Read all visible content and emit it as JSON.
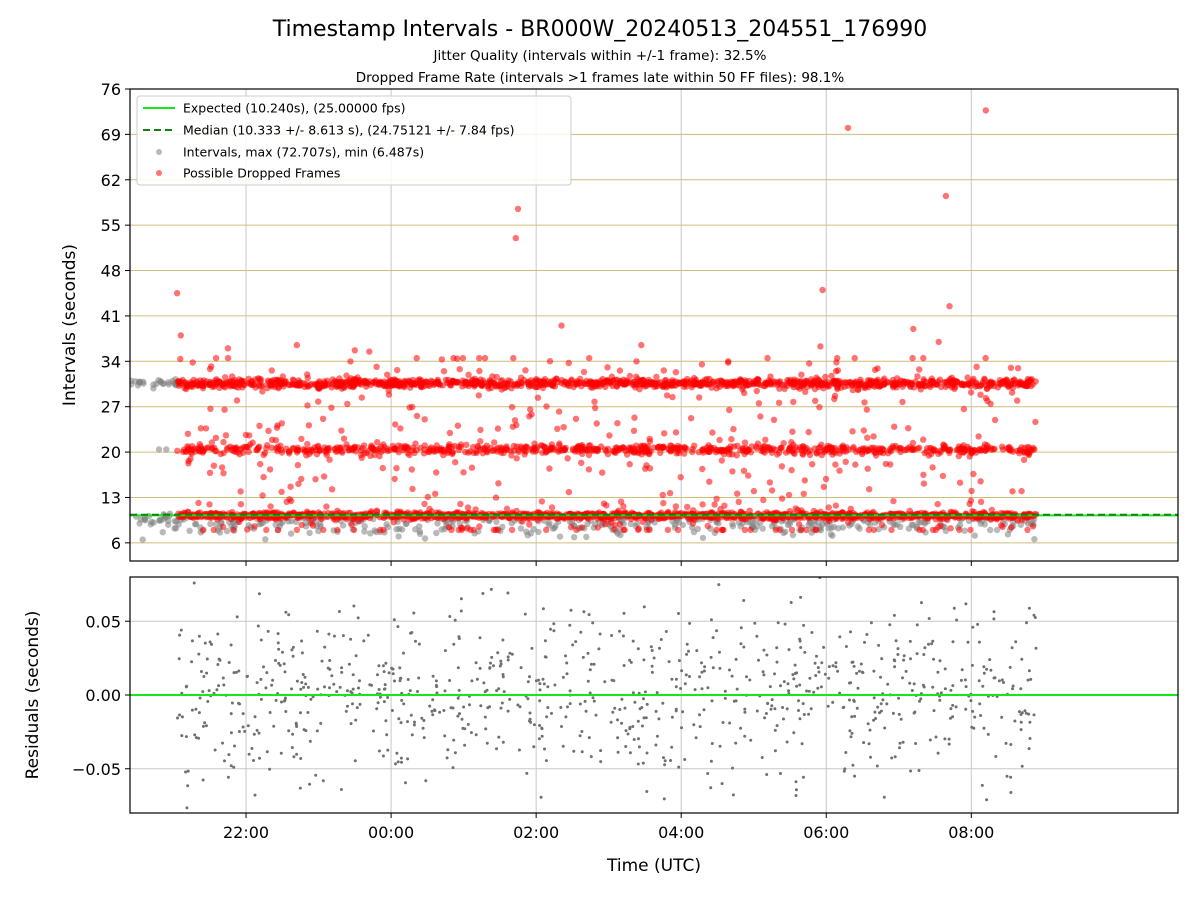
{
  "title": "Timestamp Intervals - BR000W_20240513_204551_176990",
  "subtitles": [
    "Jitter Quality (intervals within +/-1 frame): 32.5%",
    "Dropped Frame Rate (intervals >1 frames late within 50 FF files): 98.1%"
  ],
  "colors": {
    "expected": "#19e619",
    "median": "#128012",
    "intervals": "#808080",
    "dropped": "#ff0000",
    "hgrid": "#d2bc7a",
    "vgrid": "#c8c8c8"
  },
  "chart_data": [
    {
      "type": "scatter",
      "xlabel": "",
      "ylabel": "Intervals (seconds)",
      "ylim": [
        3.2,
        76
      ],
      "y_ticks": [
        "6",
        "13",
        "20",
        "27",
        "34",
        "41",
        "48",
        "55",
        "62",
        "69",
        "76"
      ],
      "x_ticks": [
        "22:00",
        "00:00",
        "02:00",
        "04:00",
        "06:00",
        "08:00"
      ],
      "xlim_hours": [
        -3.6,
        10.85
      ],
      "legend": {
        "placement": "top-left",
        "entries": [
          "Expected (10.240s), (25.00000 fps)",
          "Median (10.333 +/- 8.613 s), (24.75121 +/- 7.84 fps)",
          "Intervals, max (72.707s), min (6.487s)",
          "Possible Dropped Frames"
        ]
      },
      "expected_interval_s": 10.24,
      "median_interval_s": 10.333,
      "series": [
        {
          "name": "Possible Dropped Frames",
          "bands_s": [
            10.2,
            20.4,
            30.6
          ],
          "x_range_hours": [
            -2.95,
            8.9
          ],
          "outliers": [
            {
              "x": -2.95,
              "y": 44.5
            },
            {
              "x": -2.9,
              "y": 38.0
            },
            {
              "x": 1.75,
              "y": 57.5
            },
            {
              "x": 1.72,
              "y": 53.0
            },
            {
              "x": 2.35,
              "y": 39.5
            },
            {
              "x": 3.45,
              "y": 36.5
            },
            {
              "x": 6.3,
              "y": 70.0
            },
            {
              "x": 5.95,
              "y": 45.0
            },
            {
              "x": 5.92,
              "y": 36.3
            },
            {
              "x": 7.65,
              "y": 59.5
            },
            {
              "x": 7.7,
              "y": 42.5
            },
            {
              "x": 8.2,
              "y": 72.7
            },
            {
              "x": 7.2,
              "y": 39.0
            },
            {
              "x": -1.3,
              "y": 36.5
            },
            {
              "x": -2.25,
              "y": 36.0
            },
            {
              "x": -0.5,
              "y": 35.7
            },
            {
              "x": -0.3,
              "y": 35.5
            },
            {
              "x": 4.65,
              "y": 34.0
            },
            {
              "x": 7.55,
              "y": 37.0
            }
          ]
        },
        {
          "name": "Intervals",
          "bands_s": [
            10.2,
            20.4,
            30.6
          ],
          "x_range_hours": [
            -3.6,
            8.9
          ],
          "low_min_s": 6.487
        }
      ]
    },
    {
      "type": "scatter",
      "xlabel": "Time (UTC)",
      "ylabel": "Residuals (seconds)",
      "ylim": [
        -0.08,
        0.08
      ],
      "y_ticks": [
        "−0.05",
        "0.00",
        "0.05"
      ],
      "x_ticks": [
        "22:00",
        "00:00",
        "02:00",
        "04:00",
        "06:00",
        "08:00"
      ],
      "xlim_hours": [
        -3.6,
        10.85
      ],
      "series": [
        {
          "name": "Residuals",
          "spread_s": 0.03,
          "x_range_hours": [
            -2.95,
            8.9
          ]
        }
      ]
    }
  ]
}
